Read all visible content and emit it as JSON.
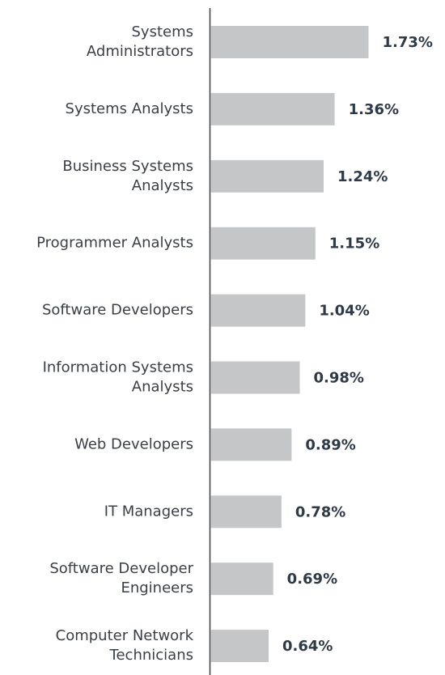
{
  "chart_data": {
    "type": "bar",
    "orientation": "horizontal",
    "categories": [
      "Systems Administrators",
      "Systems Analysts",
      "Business Systems Analysts",
      "Programmer Analysts",
      "Software Developers",
      "Information Systems Analysts",
      "Web Developers",
      "IT Managers",
      "Software Developer Engineers",
      "Computer Network Technicians"
    ],
    "values": [
      1.73,
      1.36,
      1.24,
      1.15,
      1.04,
      0.98,
      0.89,
      0.78,
      0.69,
      0.64
    ],
    "value_labels": [
      "1.73%",
      "1.36%",
      "1.24%",
      "1.15%",
      "1.04%",
      "0.98%",
      "0.89%",
      "0.78%",
      "0.69%",
      "0.64%"
    ],
    "color": "#c5c6c8"
  }
}
